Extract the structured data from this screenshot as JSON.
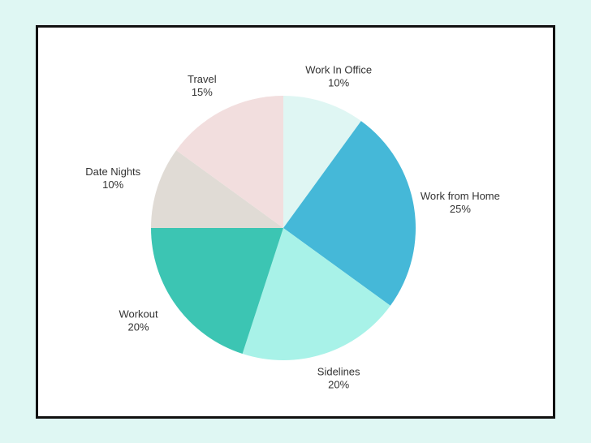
{
  "chart_data": {
    "type": "pie",
    "categories": [
      "Work In Office",
      "Work from Home",
      "Sidelines",
      "Workout",
      "Date Nights",
      "Travel"
    ],
    "values": [
      10,
      25,
      20,
      20,
      10,
      15
    ],
    "value_labels": [
      "10%",
      "25%",
      "20%",
      "20%",
      "10%",
      "15%"
    ],
    "colors": [
      "#dff6f3",
      "#45b8d8",
      "#a8f2e8",
      "#3cc5b3",
      "#e0dbd5",
      "#f2dede"
    ]
  }
}
